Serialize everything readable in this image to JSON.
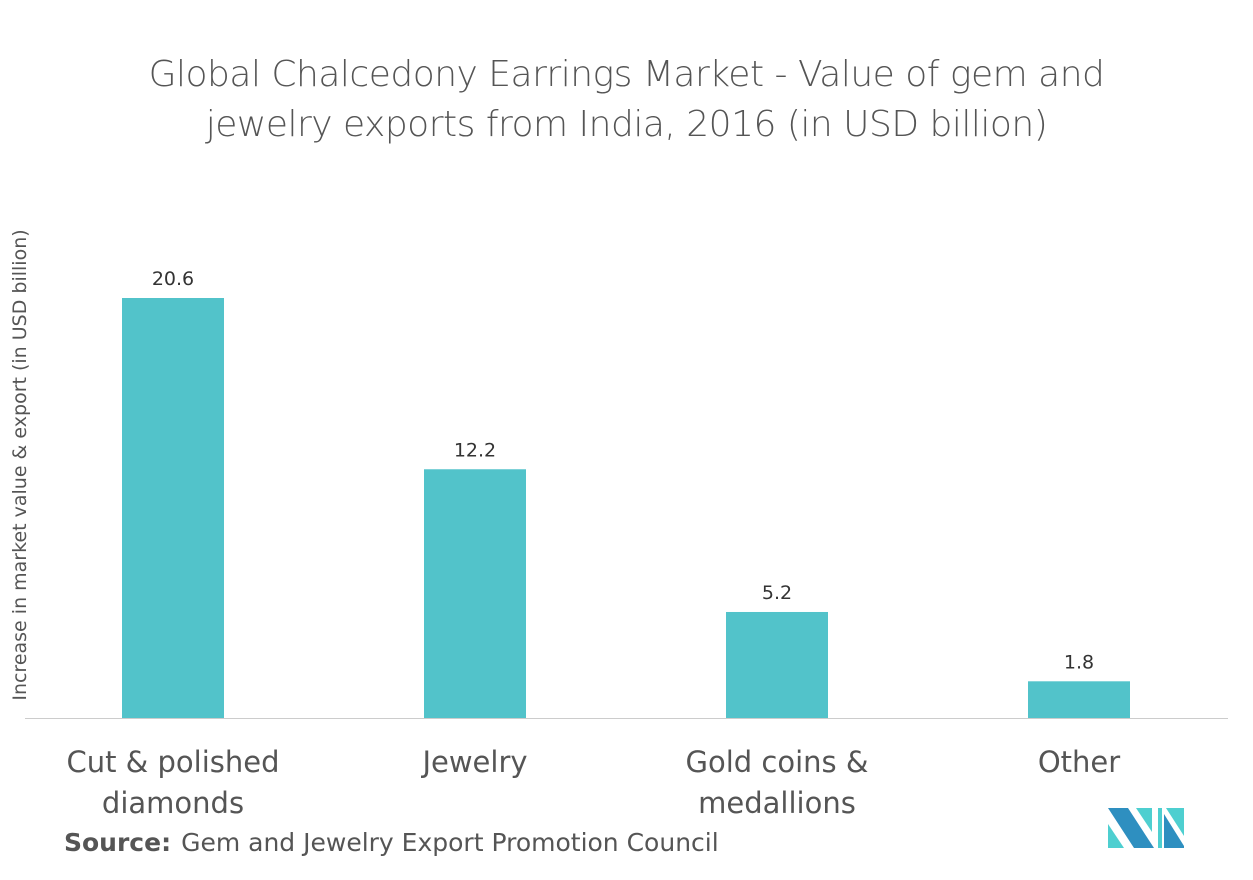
{
  "chart_data": {
    "type": "bar",
    "title": [
      "Global Chalcedony Earrings Market - Value of gem and",
      "jewelry exports from India, 2016 (in USD billion)"
    ],
    "xlabel": "",
    "ylabel": "Increase in market value & export (in USD billion)",
    "categories": [
      [
        "Cut & polished",
        "diamonds"
      ],
      [
        "Jewelry"
      ],
      [
        "Gold coins &",
        "medallions"
      ],
      [
        "Other"
      ]
    ],
    "values": [
      20.6,
      12.2,
      5.2,
      1.8
    ],
    "data_labels": [
      "20.6",
      "12.2",
      "5.2",
      "1.8"
    ],
    "ylim": [
      0,
      22
    ],
    "grid": false,
    "bar_color": "#52c3ca"
  },
  "source": {
    "label": "Source:",
    "text": "Gem and Jewelry Export Promotion Council"
  },
  "logo": {
    "colors": [
      "#2e8fc0",
      "#4ecfd0"
    ]
  }
}
